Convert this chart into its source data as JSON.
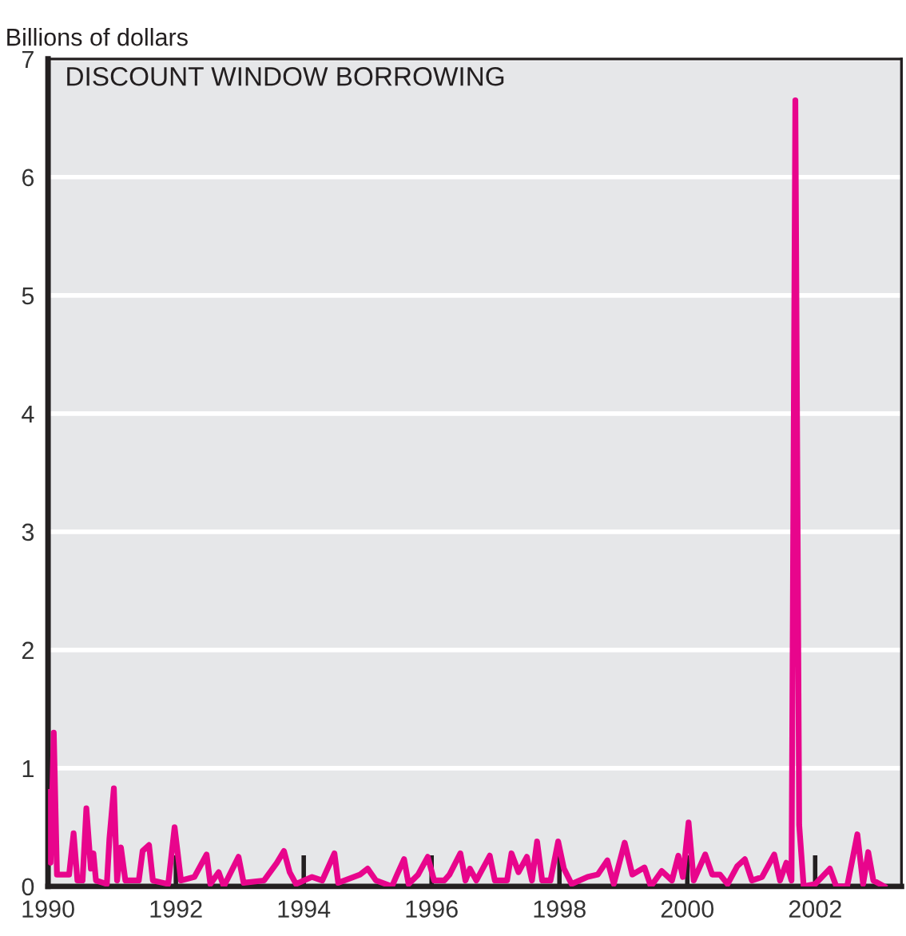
{
  "chart_data": {
    "type": "line",
    "title": "DISCOUNT WINDOW BORROWING",
    "ylabel": "Billions of dollars",
    "x": [
      1990.02,
      1990.04,
      1990.09,
      1990.14,
      1990.33,
      1990.4,
      1990.46,
      1990.54,
      1990.6,
      1990.67,
      1990.71,
      1990.75,
      1990.92,
      1990.96,
      1991.03,
      1991.08,
      1991.14,
      1991.21,
      1991.42,
      1991.48,
      1991.58,
      1991.64,
      1991.88,
      1991.98,
      1992.08,
      1992.29,
      1992.48,
      1992.54,
      1992.67,
      1992.75,
      1992.98,
      1993.06,
      1993.38,
      1993.58,
      1993.69,
      1993.78,
      1993.88,
      1994.13,
      1994.29,
      1994.48,
      1994.54,
      1994.88,
      1995.0,
      1995.13,
      1995.38,
      1995.46,
      1995.57,
      1995.64,
      1995.79,
      1995.94,
      1996.04,
      1996.2,
      1996.28,
      1996.45,
      1996.53,
      1996.6,
      1996.7,
      1996.77,
      1996.91,
      1996.99,
      1997.18,
      1997.25,
      1997.36,
      1997.49,
      1997.57,
      1997.65,
      1997.73,
      1997.86,
      1997.98,
      1998.07,
      1998.19,
      1998.44,
      1998.6,
      1998.75,
      1998.85,
      1999.02,
      1999.14,
      1999.33,
      1999.43,
      1999.6,
      1999.76,
      1999.86,
      1999.93,
      2000.02,
      2000.1,
      2000.28,
      2000.39,
      2000.51,
      2000.63,
      2000.78,
      2000.9,
      2001.01,
      2001.17,
      2001.36,
      2001.45,
      2001.55,
      2001.63,
      2001.69,
      2001.75,
      2001.82,
      2002.0,
      2002.23,
      2002.33,
      2002.5,
      2002.66,
      2002.75,
      2002.83,
      2002.91,
      2003.08
    ],
    "series": [
      {
        "color": "#e8058c",
        "values": [
          0.8,
          0.2,
          1.3,
          0.1,
          0.1,
          0.45,
          0.05,
          0.05,
          0.66,
          0.15,
          0.28,
          0.05,
          0.02,
          0.4,
          0.83,
          0.05,
          0.33,
          0.05,
          0.05,
          0.3,
          0.35,
          0.05,
          0.02,
          0.5,
          0.05,
          0.08,
          0.27,
          0.02,
          0.12,
          0.0,
          0.25,
          0.03,
          0.05,
          0.2,
          0.3,
          0.12,
          0.02,
          0.08,
          0.05,
          0.28,
          0.03,
          0.1,
          0.15,
          0.05,
          0.0,
          0.1,
          0.23,
          0.02,
          0.1,
          0.25,
          0.05,
          0.05,
          0.1,
          0.28,
          0.05,
          0.15,
          0.05,
          0.12,
          0.26,
          0.05,
          0.05,
          0.28,
          0.12,
          0.25,
          0.05,
          0.38,
          0.05,
          0.05,
          0.38,
          0.15,
          0.02,
          0.08,
          0.1,
          0.22,
          0.02,
          0.37,
          0.1,
          0.16,
          0.0,
          0.13,
          0.05,
          0.26,
          0.08,
          0.54,
          0.05,
          0.27,
          0.1,
          0.1,
          0.02,
          0.17,
          0.23,
          0.05,
          0.08,
          0.27,
          0.05,
          0.2,
          0.05,
          6.65,
          0.52,
          0.0,
          0.02,
          0.15,
          0.0,
          0.0,
          0.44,
          0.02,
          0.29,
          0.05,
          0.0
        ]
      }
    ],
    "xlim": [
      1990,
      2003.35
    ],
    "ylim": [
      0,
      7
    ],
    "xticks": [
      1990,
      1992,
      1994,
      1996,
      1998,
      2000,
      2002
    ],
    "yticks": [
      0,
      1,
      2,
      3,
      4,
      5,
      6,
      7
    ],
    "grid": "y",
    "marker": "none",
    "line_style": "solid"
  }
}
